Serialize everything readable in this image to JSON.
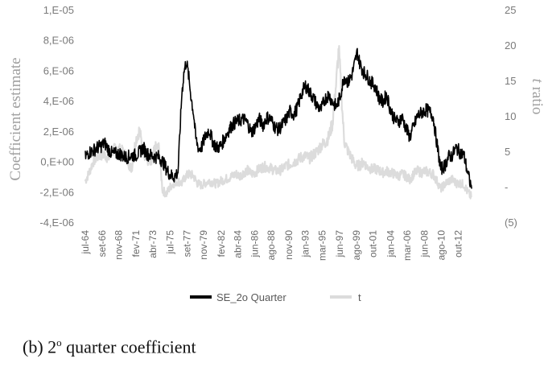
{
  "chart_data": {
    "type": "line",
    "y_left": {
      "label": "Coefficient estimate",
      "ticks": [
        "1,E-05",
        "8,E-06",
        "6,E-06",
        "4,E-06",
        "2,E-06",
        "0,E+00",
        "-2,E-06",
        "-4,E-06"
      ],
      "tick_values": [
        1e-05,
        8e-06,
        6e-06,
        4e-06,
        2e-06,
        0,
        -2e-06,
        -4e-06
      ],
      "range": [
        -4e-06,
        1e-05
      ]
    },
    "y_right": {
      "label_italic": "t",
      "label_rest": " ratio",
      "ticks": [
        "25",
        "20",
        "15",
        "10",
        "5",
        "-",
        "(5)"
      ],
      "tick_values": [
        25,
        20,
        15,
        10,
        5,
        0,
        -5
      ],
      "range": [
        -5,
        25
      ]
    },
    "x_range": [
      1964.5,
      2014.7
    ],
    "x_ticks": [
      {
        "label": "jul-64",
        "x": 1964.5
      },
      {
        "label": "set-66",
        "x": 1966.67
      },
      {
        "label": "nov-68",
        "x": 1968.83
      },
      {
        "label": "fev-71",
        "x": 1971.08
      },
      {
        "label": "abr-73",
        "x": 1973.25
      },
      {
        "label": "jul-75",
        "x": 1975.5
      },
      {
        "label": "set-77",
        "x": 1977.67
      },
      {
        "label": "nov-79",
        "x": 1979.83
      },
      {
        "label": "fev-82",
        "x": 1982.08
      },
      {
        "label": "abr-84",
        "x": 1984.25
      },
      {
        "label": "jun-86",
        "x": 1986.42
      },
      {
        "label": "ago-88",
        "x": 1988.58
      },
      {
        "label": "nov-90",
        "x": 1990.83
      },
      {
        "label": "jan-93",
        "x": 1993.0
      },
      {
        "label": "mar-95",
        "x": 1995.17
      },
      {
        "label": "jun-97",
        "x": 1997.42
      },
      {
        "label": "ago-99",
        "x": 1999.58
      },
      {
        "label": "out-01",
        "x": 2001.75
      },
      {
        "label": "jan-04",
        "x": 2004.0
      },
      {
        "label": "mar-06",
        "x": 2006.17
      },
      {
        "label": "jun-08",
        "x": 2008.42
      },
      {
        "label": "ago-10",
        "x": 2010.58
      },
      {
        "label": "out-12",
        "x": 2012.75
      }
    ],
    "series": [
      {
        "name": "SE_2o Quarter",
        "axis": "left",
        "color": "#000000",
        "points": [
          [
            1964.5,
            3e-07
          ],
          [
            1965.0,
            6e-07
          ],
          [
            1965.5,
            7e-07
          ],
          [
            1966.0,
            9e-07
          ],
          [
            1966.5,
            1e-06
          ],
          [
            1967.0,
            1.2e-06
          ],
          [
            1967.5,
            8e-07
          ],
          [
            1968.0,
            5e-07
          ],
          [
            1968.5,
            5e-07
          ],
          [
            1969.0,
            5e-07
          ],
          [
            1969.5,
            3e-07
          ],
          [
            1970.0,
            3e-07
          ],
          [
            1970.5,
            4e-07
          ],
          [
            1971.0,
            4e-07
          ],
          [
            1971.5,
            6e-07
          ],
          [
            1972.0,
            9e-07
          ],
          [
            1972.5,
            5e-07
          ],
          [
            1973.0,
            4e-07
          ],
          [
            1973.5,
            3e-07
          ],
          [
            1974.0,
            3e-07
          ],
          [
            1974.5,
            0.0
          ],
          [
            1975.0,
            -5e-07
          ],
          [
            1975.5,
            -9e-07
          ],
          [
            1976.0,
            -1e-06
          ],
          [
            1976.5,
            -7e-07
          ],
          [
            1976.8,
            2.5e-06
          ],
          [
            1977.0,
            4.5e-06
          ],
          [
            1977.3,
            6e-06
          ],
          [
            1977.6,
            6.6e-06
          ],
          [
            1977.9,
            5.5e-06
          ],
          [
            1978.2,
            4.2e-06
          ],
          [
            1978.5,
            3.2e-06
          ],
          [
            1978.8,
            1.5e-06
          ],
          [
            1979.2,
            8e-07
          ],
          [
            1979.6,
            1e-06
          ],
          [
            1980.0,
            1.6e-06
          ],
          [
            1980.5,
            2.1e-06
          ],
          [
            1981.0,
            1.3e-06
          ],
          [
            1981.5,
            9e-07
          ],
          [
            1982.0,
            1e-06
          ],
          [
            1982.5,
            1.5e-06
          ],
          [
            1983.0,
            2e-06
          ],
          [
            1983.5,
            2.4e-06
          ],
          [
            1984.0,
            2.6e-06
          ],
          [
            1984.5,
            2.7e-06
          ],
          [
            1985.0,
            2.8e-06
          ],
          [
            1985.5,
            2.5e-06
          ],
          [
            1986.0,
            1.9e-06
          ],
          [
            1986.5,
            2.3e-06
          ],
          [
            1987.0,
            2.8e-06
          ],
          [
            1987.5,
            2.4e-06
          ],
          [
            1988.0,
            2.9e-06
          ],
          [
            1988.5,
            2.8e-06
          ],
          [
            1989.0,
            2.3e-06
          ],
          [
            1989.5,
            2.1e-06
          ],
          [
            1990.0,
            2.4e-06
          ],
          [
            1990.5,
            2.8e-06
          ],
          [
            1991.0,
            3.3e-06
          ],
          [
            1991.5,
            3.1e-06
          ],
          [
            1992.0,
            3.6e-06
          ],
          [
            1992.5,
            4.5e-06
          ],
          [
            1993.0,
            5e-06
          ],
          [
            1993.5,
            4.6e-06
          ],
          [
            1994.0,
            4.2e-06
          ],
          [
            1994.5,
            3.7e-06
          ],
          [
            1995.0,
            3.4e-06
          ],
          [
            1995.5,
            4.1e-06
          ],
          [
            1996.0,
            4.4e-06
          ],
          [
            1996.5,
            3.9e-06
          ],
          [
            1997.0,
            3.6e-06
          ],
          [
            1997.5,
            4.3e-06
          ],
          [
            1998.0,
            5.6e-06
          ],
          [
            1998.5,
            5.2e-06
          ],
          [
            1999.0,
            5.7e-06
          ],
          [
            1999.3,
            6.3e-06
          ],
          [
            1999.7,
            7.2e-06
          ],
          [
            2000.0,
            6.5e-06
          ],
          [
            2000.5,
            5.9e-06
          ],
          [
            2001.0,
            5.6e-06
          ],
          [
            2001.5,
            5.2e-06
          ],
          [
            2002.0,
            5e-06
          ],
          [
            2002.5,
            4.2e-06
          ],
          [
            2003.0,
            3.9e-06
          ],
          [
            2003.5,
            4.4e-06
          ],
          [
            2004.0,
            3.4e-06
          ],
          [
            2004.5,
            2.8e-06
          ],
          [
            2005.0,
            2.6e-06
          ],
          [
            2005.5,
            2.9e-06
          ],
          [
            2006.0,
            2.2e-06
          ],
          [
            2006.5,
            1.6e-06
          ],
          [
            2007.0,
            2.3e-06
          ],
          [
            2007.5,
            3e-06
          ],
          [
            2008.0,
            3.2e-06
          ],
          [
            2008.5,
            3.4e-06
          ],
          [
            2009.0,
            3.3e-06
          ],
          [
            2009.5,
            3e-06
          ],
          [
            2010.0,
            1.2e-06
          ],
          [
            2010.5,
            -5e-07
          ],
          [
            2011.0,
            -3e-07
          ],
          [
            2011.5,
            3e-07
          ],
          [
            2012.0,
            4e-07
          ],
          [
            2012.5,
            9e-07
          ],
          [
            2013.0,
            6e-07
          ],
          [
            2013.5,
            4e-07
          ],
          [
            2014.0,
            -8e-07
          ],
          [
            2014.5,
            -1.8e-06
          ]
        ]
      },
      {
        "name": "t",
        "axis": "right",
        "color": "#dcdcdc",
        "points": [
          [
            1964.5,
            0.8
          ],
          [
            1965.0,
            2.0
          ],
          [
            1965.5,
            3.5
          ],
          [
            1966.0,
            4.2
          ],
          [
            1966.5,
            4.5
          ],
          [
            1967.0,
            4.5
          ],
          [
            1967.5,
            4.0
          ],
          [
            1968.0,
            5.0
          ],
          [
            1968.5,
            5.5
          ],
          [
            1969.0,
            5.2
          ],
          [
            1969.5,
            4.8
          ],
          [
            1970.0,
            3.5
          ],
          [
            1970.5,
            2.5
          ],
          [
            1971.0,
            6.5
          ],
          [
            1971.5,
            8.0
          ],
          [
            1972.0,
            5.0
          ],
          [
            1972.5,
            3.8
          ],
          [
            1973.0,
            3.0
          ],
          [
            1973.5,
            5.5
          ],
          [
            1974.0,
            5.5
          ],
          [
            1974.5,
            -0.5
          ],
          [
            1975.0,
            -1.0
          ],
          [
            1975.5,
            0.0
          ],
          [
            1976.0,
            0.5
          ],
          [
            1976.5,
            0.8
          ],
          [
            1977.0,
            0.5
          ],
          [
            1977.5,
            1.5
          ],
          [
            1978.0,
            1.8
          ],
          [
            1978.5,
            1.5
          ],
          [
            1979.0,
            0.5
          ],
          [
            1979.5,
            0.2
          ],
          [
            1980.0,
            0.5
          ],
          [
            1980.5,
            0.8
          ],
          [
            1981.0,
            0.6
          ],
          [
            1981.5,
            0.4
          ],
          [
            1982.0,
            0.8
          ],
          [
            1982.5,
            1.0
          ],
          [
            1983.0,
            1.2
          ],
          [
            1983.5,
            1.5
          ],
          [
            1984.0,
            1.8
          ],
          [
            1984.5,
            1.5
          ],
          [
            1985.0,
            2.0
          ],
          [
            1985.5,
            2.3
          ],
          [
            1986.0,
            1.8
          ],
          [
            1986.5,
            2.0
          ],
          [
            1987.0,
            2.5
          ],
          [
            1987.5,
            2.8
          ],
          [
            1988.0,
            2.8
          ],
          [
            1988.5,
            2.6
          ],
          [
            1989.0,
            2.3
          ],
          [
            1989.5,
            2.2
          ],
          [
            1990.0,
            2.5
          ],
          [
            1990.5,
            3.0
          ],
          [
            1991.0,
            3.2
          ],
          [
            1991.5,
            3.5
          ],
          [
            1992.0,
            3.8
          ],
          [
            1992.5,
            4.2
          ],
          [
            1993.0,
            4.3
          ],
          [
            1993.5,
            4.0
          ],
          [
            1994.0,
            4.5
          ],
          [
            1994.5,
            5.0
          ],
          [
            1995.0,
            5.8
          ],
          [
            1995.5,
            6.2
          ],
          [
            1996.0,
            7.0
          ],
          [
            1996.5,
            9.0
          ],
          [
            1997.0,
            15.0
          ],
          [
            1997.3,
            19.5
          ],
          [
            1997.7,
            12.0
          ],
          [
            1998.0,
            6.5
          ],
          [
            1998.5,
            5.0
          ],
          [
            1999.0,
            4.0
          ],
          [
            1999.5,
            3.0
          ],
          [
            2000.0,
            3.0
          ],
          [
            2000.5,
            3.5
          ],
          [
            2001.0,
            2.8
          ],
          [
            2001.5,
            2.5
          ],
          [
            2002.0,
            2.5
          ],
          [
            2002.5,
            2.3
          ],
          [
            2003.0,
            2.0
          ],
          [
            2003.5,
            2.2
          ],
          [
            2004.0,
            2.0
          ],
          [
            2004.5,
            1.8
          ],
          [
            2005.0,
            1.5
          ],
          [
            2005.5,
            1.8
          ],
          [
            2006.0,
            1.5
          ],
          [
            2006.5,
            1.0
          ],
          [
            2007.0,
            1.8
          ],
          [
            2007.5,
            2.2
          ],
          [
            2008.0,
            2.0
          ],
          [
            2008.5,
            2.2
          ],
          [
            2009.0,
            2.0
          ],
          [
            2009.5,
            1.8
          ],
          [
            2010.0,
            0.8
          ],
          [
            2010.5,
            -0.3
          ],
          [
            2011.0,
            0.3
          ],
          [
            2011.5,
            0.8
          ],
          [
            2012.0,
            1.0
          ],
          [
            2012.5,
            0.5
          ],
          [
            2013.0,
            0.5
          ],
          [
            2013.5,
            0.3
          ],
          [
            2014.0,
            -0.8
          ],
          [
            2014.5,
            -1.5
          ]
        ]
      }
    ],
    "legend": [
      "SE_2o Quarter",
      "t"
    ],
    "legend_position": "bottom"
  },
  "caption": {
    "prefix": "(b) 2",
    "superscript": "o",
    "suffix": " quarter coefficient"
  }
}
